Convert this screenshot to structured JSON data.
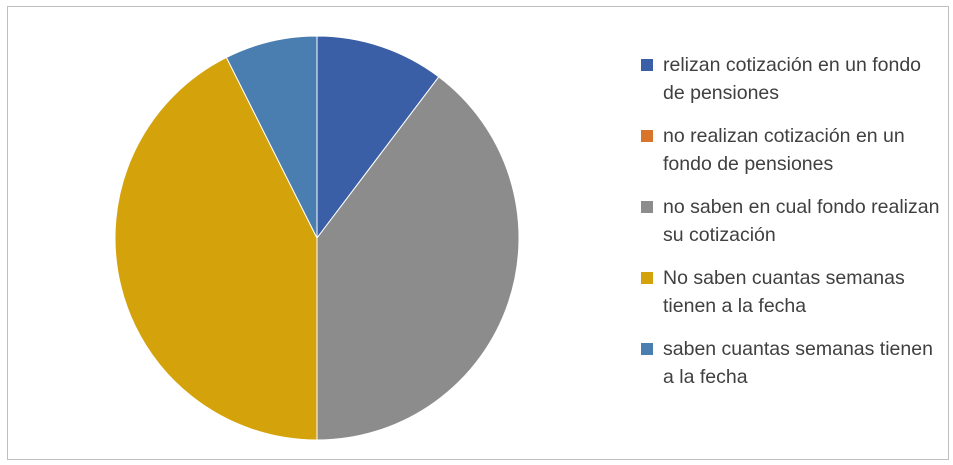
{
  "chart_data": {
    "type": "pie",
    "title": "",
    "legend_position": "right",
    "start_angle": "top, clockwise",
    "slices": [
      {
        "label": "relizan cotización en un fondo de pensiones",
        "value": 10.3,
        "color": "#3A5FA6"
      },
      {
        "label": "no realizan cotización en un fondo de  pensiones",
        "value": 0,
        "color": "#D9742B"
      },
      {
        "label": "no saben en cual fondo realizan su cotización",
        "value": 39.7,
        "color": "#8C8C8C"
      },
      {
        "label": "No saben cuantas semanas tienen a la fecha",
        "value": 42.6,
        "color": "#D4A20A"
      },
      {
        "label": "saben cuantas semanas tienen a la fecha",
        "value": 7.4,
        "color": "#4A7EB0"
      }
    ]
  }
}
